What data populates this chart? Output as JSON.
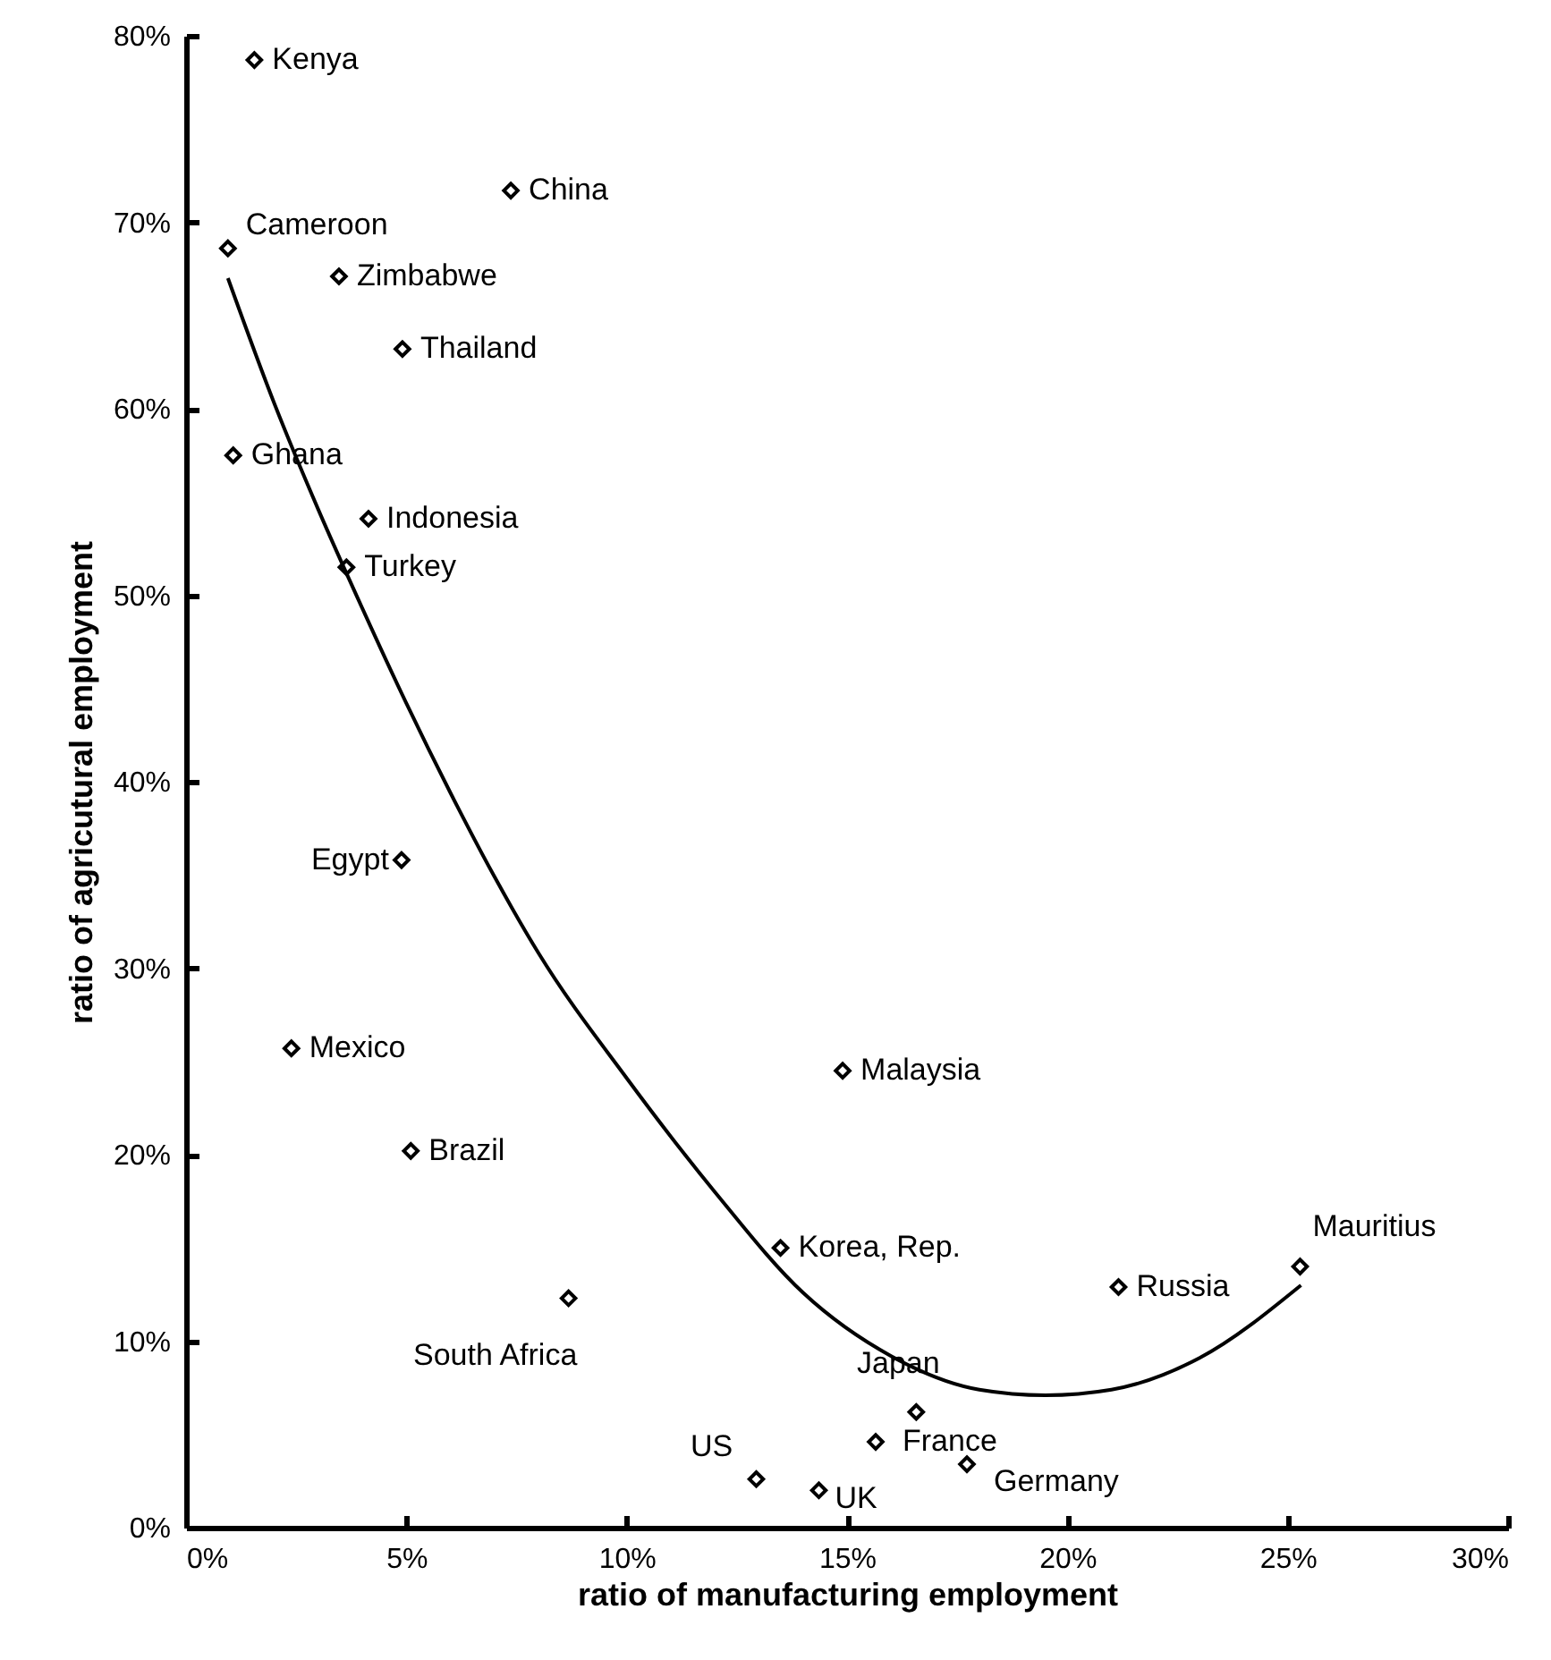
{
  "chart_data": {
    "type": "scatter",
    "xlabel": "ratio of manufacturing employment",
    "ylabel": "ratio of agricutural employment",
    "xlim": [
      0,
      30
    ],
    "ylim": [
      0,
      80
    ],
    "xticks": [
      {
        "value": 0,
        "label": "0%"
      },
      {
        "value": 5,
        "label": "5%"
      },
      {
        "value": 10,
        "label": "10%"
      },
      {
        "value": 15,
        "label": "15%"
      },
      {
        "value": 20,
        "label": "20%"
      },
      {
        "value": 25,
        "label": "25%"
      },
      {
        "value": 30,
        "label": "30%"
      }
    ],
    "yticks": [
      {
        "value": 0,
        "label": "0%"
      },
      {
        "value": 10,
        "label": "10%"
      },
      {
        "value": 20,
        "label": "20%"
      },
      {
        "value": 30,
        "label": "30%"
      },
      {
        "value": 40,
        "label": "40%"
      },
      {
        "value": 50,
        "label": "50%"
      },
      {
        "value": 60,
        "label": "60%"
      },
      {
        "value": 70,
        "label": "70%"
      },
      {
        "value": 80,
        "label": "80%"
      }
    ],
    "grid": false,
    "marker": "diamond",
    "series": [
      {
        "name": "Kenya",
        "color": "#000000",
        "x": [
          1.55
        ],
        "values": [
          78.7
        ]
      },
      {
        "name": "China",
        "color": "#000000",
        "x": [
          7.37
        ],
        "values": [
          71.7
        ]
      },
      {
        "name": "Cameroon",
        "color": "#000000",
        "x": [
          0.95
        ],
        "values": [
          68.6
        ]
      },
      {
        "name": "Zimbabwe",
        "color": "#000000",
        "x": [
          3.47
        ],
        "values": [
          67.1
        ]
      },
      {
        "name": "Thailand",
        "color": "#000000",
        "x": [
          4.91
        ],
        "values": [
          63.2
        ]
      },
      {
        "name": "Ghana",
        "color": "#000000",
        "x": [
          1.07
        ],
        "values": [
          57.5
        ]
      },
      {
        "name": "Indonesia",
        "color": "#000000",
        "x": [
          4.14
        ],
        "values": [
          54.1
        ]
      },
      {
        "name": "Turkey",
        "color": "#000000",
        "x": [
          3.64
        ],
        "values": [
          51.5
        ]
      },
      {
        "name": "Egypt",
        "color": "#000000",
        "x": [
          4.89
        ],
        "values": [
          35.8
        ]
      },
      {
        "name": "Mexico",
        "color": "#000000",
        "x": [
          2.39
        ],
        "values": [
          25.7
        ]
      },
      {
        "name": "Brazil",
        "color": "#000000",
        "x": [
          5.1
        ],
        "values": [
          20.2
        ]
      },
      {
        "name": "South Africa",
        "color": "#000000",
        "x": [
          8.68
        ],
        "values": [
          12.3
        ]
      },
      {
        "name": "Malaysia",
        "color": "#000000",
        "x": [
          14.9
        ],
        "values": [
          24.5
        ]
      },
      {
        "name": "Korea, Rep.",
        "color": "#000000",
        "x": [
          13.49
        ],
        "values": [
          15.0
        ]
      },
      {
        "name": "Russia",
        "color": "#000000",
        "x": [
          21.16
        ],
        "values": [
          12.9
        ]
      },
      {
        "name": "Mauritius",
        "color": "#000000",
        "x": [
          25.28
        ],
        "values": [
          14.0
        ]
      },
      {
        "name": "Japan",
        "color": "#000000",
        "x": [
          16.57
        ],
        "values": [
          6.2
        ]
      },
      {
        "name": "France",
        "color": "#000000",
        "x": [
          15.65
        ],
        "values": [
          4.6
        ]
      },
      {
        "name": "Germany",
        "color": "#000000",
        "x": [
          17.72
        ],
        "values": [
          3.4
        ]
      },
      {
        "name": "US",
        "color": "#000000",
        "x": [
          12.94
        ],
        "values": [
          2.6
        ]
      },
      {
        "name": "UK",
        "color": "#000000",
        "x": [
          14.36
        ],
        "values": [
          2.0
        ]
      },
      {
        "type": "line",
        "color": "#000000",
        "marker": "none",
        "x": [
          0.95,
          2,
          3,
          4,
          5,
          6,
          7,
          8,
          10,
          12,
          14,
          16,
          18,
          19.5,
          21,
          23,
          25.3
        ],
        "values": [
          67.0,
          60.3,
          54.6,
          49.3,
          44.2,
          39.4,
          34.9,
          30.8,
          24.1,
          18.0,
          12.6,
          9.2,
          7.4,
          7.1,
          7.4,
          9.1,
          13.0
        ]
      }
    ]
  }
}
